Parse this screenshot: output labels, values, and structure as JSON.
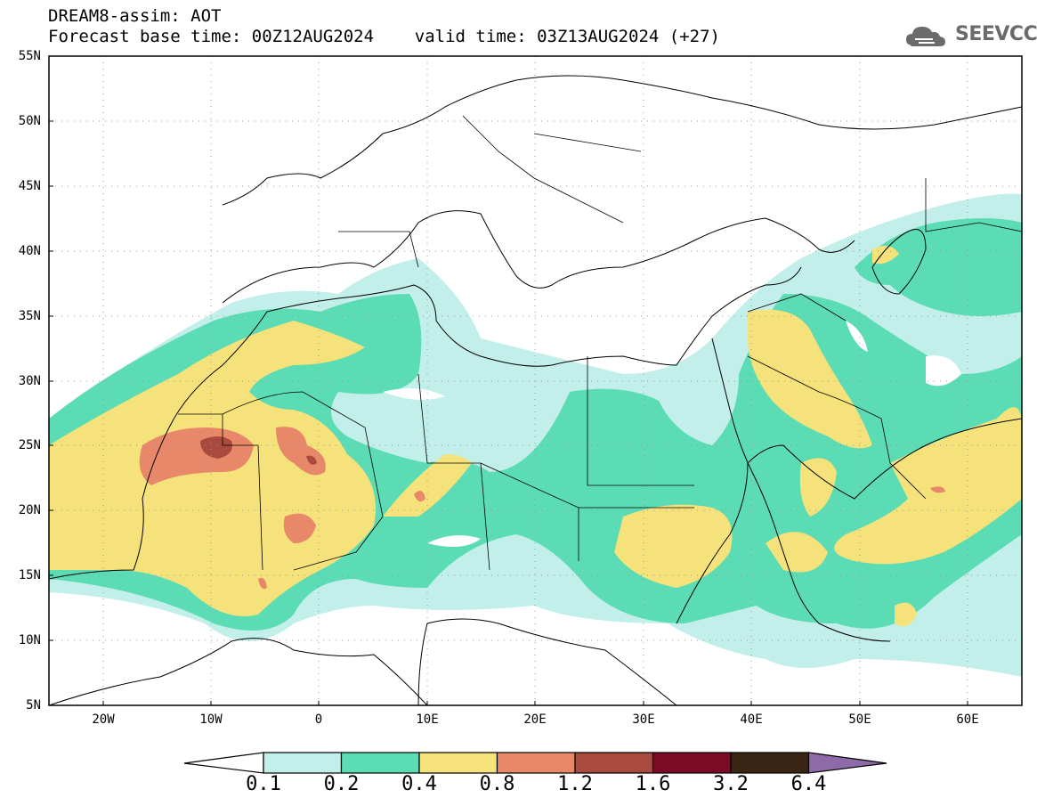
{
  "header": {
    "line1": "DREAM8-assim: AOT",
    "line2": "Forecast base time: 00Z12AUG2024    valid time: 03Z13AUG2024 (+27)"
  },
  "logo": {
    "text": "SEEVCCC",
    "icon": "cloud-icon"
  },
  "axes": {
    "lat_labels": [
      "55N",
      "50N",
      "45N",
      "40N",
      "35N",
      "30N",
      "25N",
      "20N",
      "15N",
      "10N",
      "5N"
    ],
    "lon_labels": [
      "20W",
      "10W",
      "0",
      "10E",
      "20E",
      "30E",
      "40E",
      "50E",
      "60E"
    ]
  },
  "colorbar": {
    "labels": [
      "0.1",
      "0.2",
      "0.4",
      "0.8",
      "1.2",
      "1.6",
      "3.2",
      "6.4"
    ],
    "colors": [
      "#ffffff",
      "#c2efea",
      "#5bdcb4",
      "#f5e27a",
      "#e8886a",
      "#a84a3e",
      "#7a0a26",
      "#3a2414",
      "#8e6aa8"
    ]
  },
  "colors": {
    "c1": "#c2efea",
    "c2": "#5bdcb4",
    "c3": "#f5e27a",
    "c4": "#e8886a",
    "c5": "#a84a3e"
  }
}
